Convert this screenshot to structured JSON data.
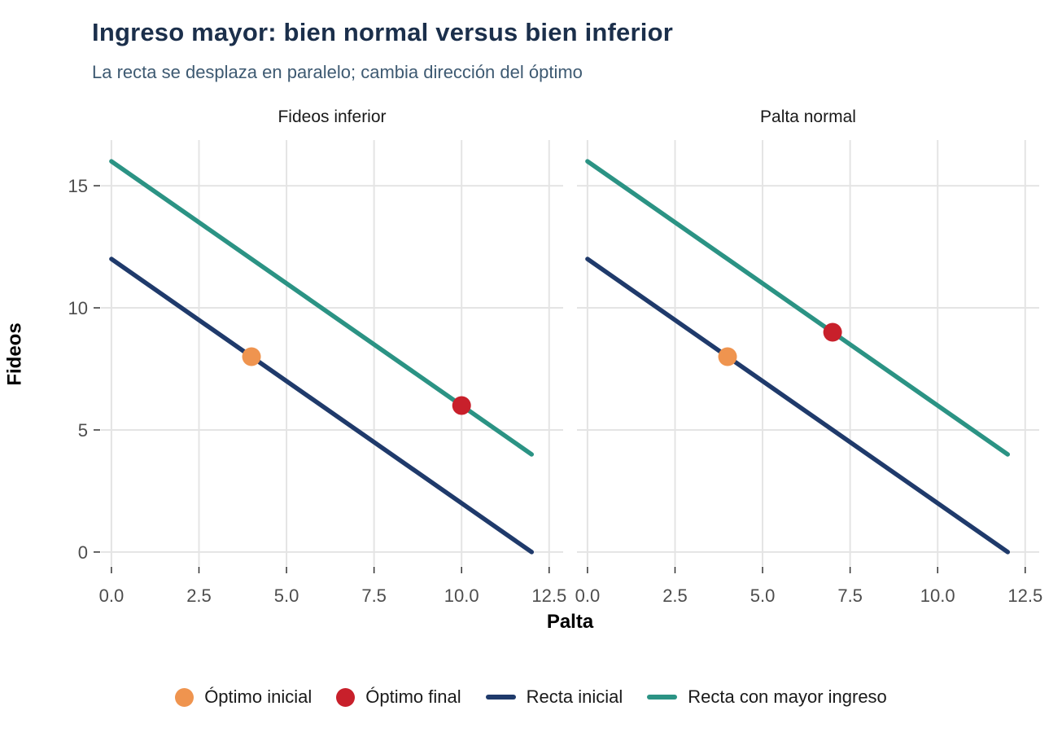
{
  "header": {
    "title": "Ingreso mayor: bien normal versus bien inferior",
    "subtitle": "La recta se desplaza en paralelo; cambia dirección del óptimo"
  },
  "colors": {
    "title": "#1b2f4b",
    "subtitle": "#3e5a72",
    "gridline": "#e4e4e4",
    "tick_mark": "#333333",
    "tick_label": "#4d4d4d",
    "recta_inicial": "#1f3a6b",
    "recta_mayor_ingreso": "#2b9384",
    "optimo_inicial": "#ef944f",
    "optimo_final": "#c8202b",
    "background": "#ffffff"
  },
  "chart_data": {
    "type": "line",
    "title": "Ingreso mayor: bien normal versus bien inferior",
    "subtitle": "La recta se desplaza en paralelo; cambia dirección del óptimo",
    "xlabel": "Palta",
    "ylabel": "Fideos",
    "xlim": [
      -0.3,
      12.9
    ],
    "ylim": [
      -0.57,
      16.87
    ],
    "grid": "major-only",
    "legend_position": "bottom",
    "x_ticks": [
      {
        "v": 0,
        "label": "0.0"
      },
      {
        "v": 2.5,
        "label": "2.5"
      },
      {
        "v": 5,
        "label": "5.0"
      },
      {
        "v": 7.5,
        "label": "7.5"
      },
      {
        "v": 10,
        "label": "10.0"
      },
      {
        "v": 12.5,
        "label": "12.5"
      }
    ],
    "y_ticks": [
      {
        "v": 0,
        "label": "0"
      },
      {
        "v": 5,
        "label": "5"
      },
      {
        "v": 10,
        "label": "10"
      },
      {
        "v": 15,
        "label": "15"
      }
    ],
    "facets": [
      {
        "label": "Fideos inferior",
        "lines": [
          {
            "name": "Recta inicial",
            "color": "#1f3a6b",
            "points": [
              [
                0,
                12
              ],
              [
                12,
                0
              ]
            ]
          },
          {
            "name": "Recta con mayor ingreso",
            "color": "#2b9384",
            "points": [
              [
                0,
                16
              ],
              [
                12,
                4
              ]
            ]
          }
        ],
        "markers": [
          {
            "name": "Óptimo inicial",
            "color": "#ef944f",
            "x": 4,
            "y": 8
          },
          {
            "name": "Óptimo final",
            "color": "#c8202b",
            "x": 10,
            "y": 6
          }
        ]
      },
      {
        "label": "Palta normal",
        "lines": [
          {
            "name": "Recta inicial",
            "color": "#1f3a6b",
            "points": [
              [
                0,
                12
              ],
              [
                12,
                0
              ]
            ]
          },
          {
            "name": "Recta con mayor ingreso",
            "color": "#2b9384",
            "points": [
              [
                0,
                16
              ],
              [
                12,
                4
              ]
            ]
          }
        ],
        "markers": [
          {
            "name": "Óptimo inicial",
            "color": "#ef944f",
            "x": 4,
            "y": 8
          },
          {
            "name": "Óptimo final",
            "color": "#c8202b",
            "x": 7,
            "y": 9
          }
        ]
      }
    ],
    "legend": [
      {
        "label": "Óptimo inicial",
        "type": "point",
        "color": "#ef944f"
      },
      {
        "label": "Óptimo final",
        "type": "point",
        "color": "#c8202b"
      },
      {
        "label": "Recta inicial",
        "type": "line",
        "color": "#1f3a6b"
      },
      {
        "label": "Recta con mayor ingreso",
        "type": "line",
        "color": "#2b9384"
      }
    ]
  }
}
